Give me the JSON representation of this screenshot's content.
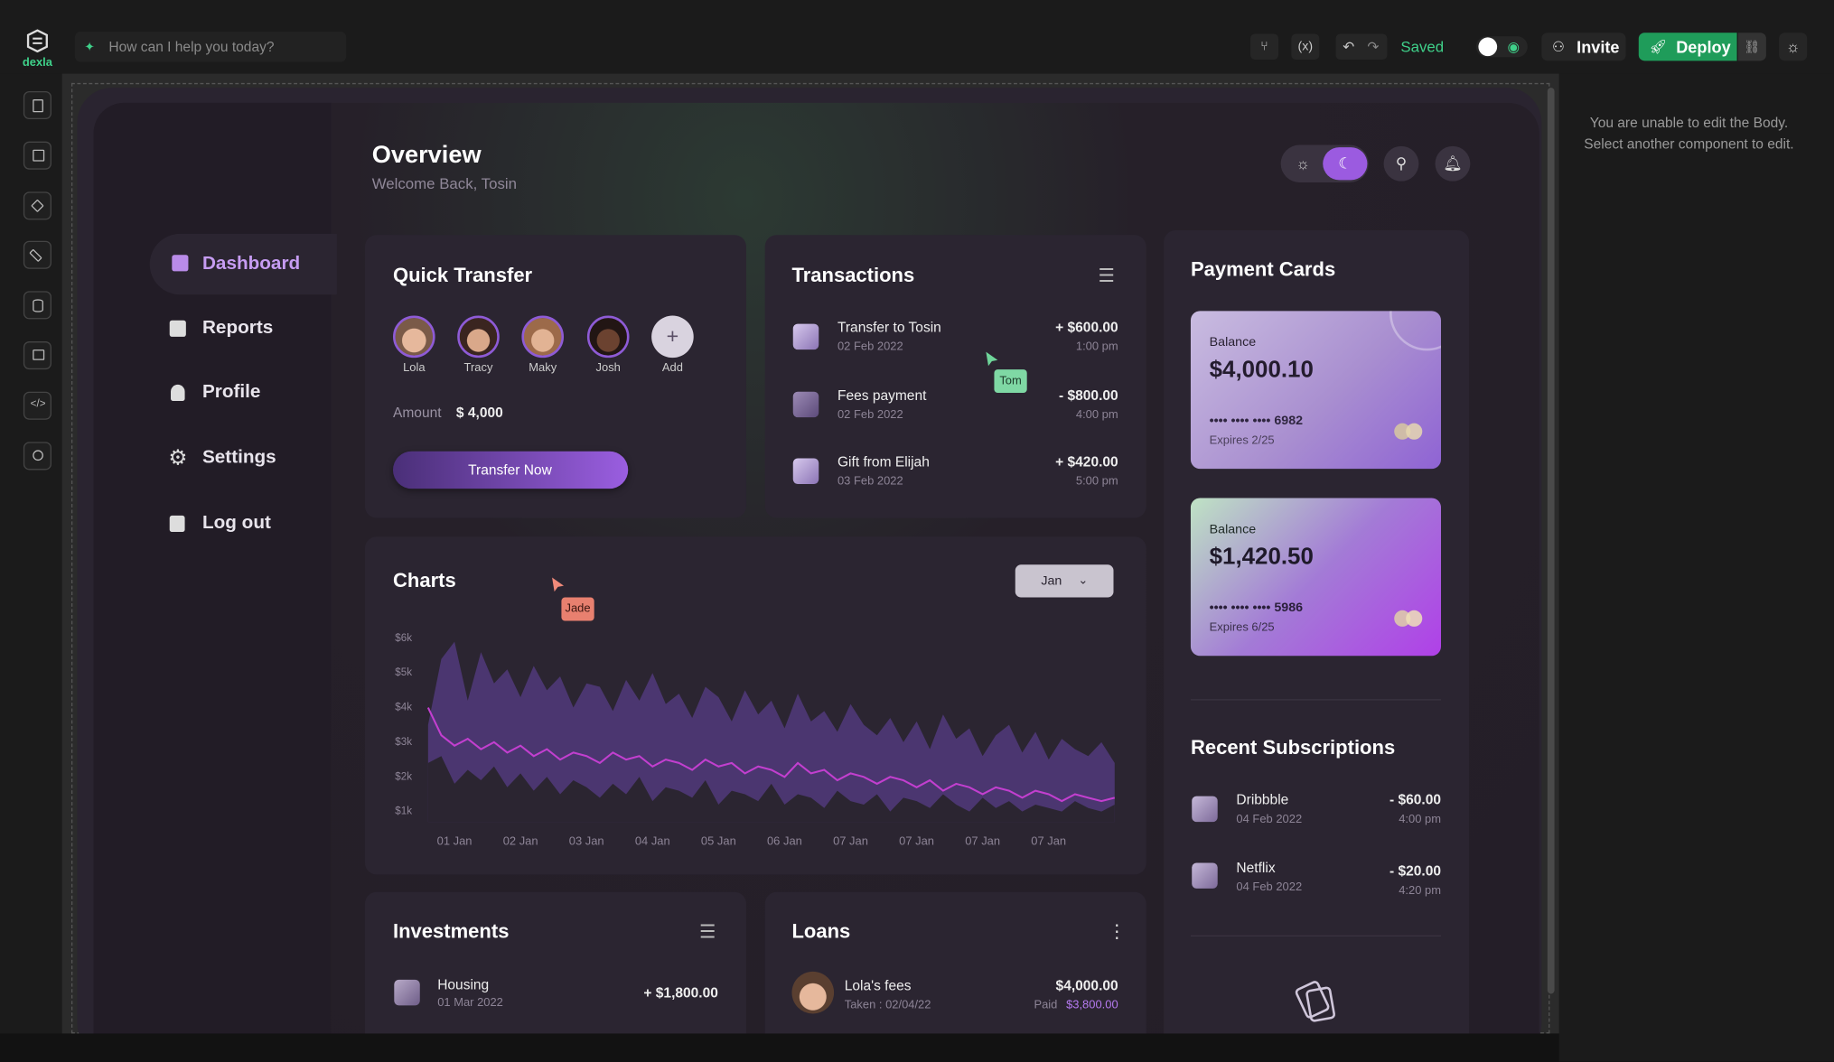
{
  "topbar": {
    "brand": "dexla",
    "prompt_placeholder": "How can I help you today?",
    "status": "Saved",
    "invite": "Invite",
    "deploy": "Deploy"
  },
  "inspector": {
    "message": "You are unable to edit the Body. Select another component to edit."
  },
  "dashboard": {
    "title": "Overview",
    "subtitle": "Welcome Back, Tosin",
    "nav": [
      "Dashboard",
      "Reports",
      "Profile",
      "Settings",
      "Log out"
    ],
    "quick_transfer": {
      "title": "Quick Transfer",
      "contacts": [
        "Lola",
        "Tracy",
        "Maky",
        "Josh",
        "Add"
      ],
      "amount_label": "Amount",
      "amount": "$ 4,000",
      "button": "Transfer Now"
    },
    "transactions": {
      "title": "Transactions",
      "rows": [
        {
          "name": "Transfer to Tosin",
          "date": "02 Feb 2022",
          "amount": "+ $600.00",
          "time": "1:00 pm"
        },
        {
          "name": "Fees payment",
          "date": "02 Feb 2022",
          "amount": "- $800.00",
          "time": "4:00 pm"
        },
        {
          "name": "Gift from Elijah",
          "date": "03 Feb 2022",
          "amount": "+ $420.00",
          "time": "5:00 pm"
        }
      ]
    },
    "cursors": [
      "Tom",
      "Jade"
    ],
    "payment_cards": {
      "title": "Payment Cards",
      "cards": [
        {
          "label": "Balance",
          "balance": "$4,000.10",
          "number": "•••• •••• •••• 6982",
          "expires": "Expires 2/25"
        },
        {
          "label": "Balance",
          "balance": "$1,420.50",
          "number": "•••• •••• •••• 5986",
          "expires": "Expires 6/25"
        }
      ]
    },
    "subscriptions": {
      "title": "Recent Subscriptions",
      "rows": [
        {
          "name": "Dribbble",
          "date": "04 Feb 2022",
          "amount": "- $60.00",
          "time": "4:00 pm"
        },
        {
          "name": "Netflix",
          "date": "04 Feb 2022",
          "amount": "- $20.00",
          "time": "4:20 pm"
        }
      ]
    },
    "investments": {
      "title": "Investments",
      "rows": [
        {
          "name": "Housing",
          "date": "01 Mar 2022",
          "amount": "+ $1,800.00"
        }
      ]
    },
    "loans": {
      "title": "Loans",
      "rows": [
        {
          "name": "Lola's fees",
          "taken": "Taken : 02/04/22",
          "amount": "$4,000.00",
          "paid_label": "Paid",
          "paid": "$3,800.00"
        }
      ]
    }
  },
  "chart_data": {
    "type": "area",
    "title": "Charts",
    "filter": "Jan",
    "categories": [
      null,
      null,
      "01 Jan",
      null,
      null,
      null,
      null,
      "02 Jan",
      null,
      null,
      null,
      null,
      "03 Jan",
      null,
      null,
      null,
      null,
      "04 Jan",
      null,
      null,
      null,
      null,
      "05 Jan",
      null,
      null,
      null,
      null,
      "06 Jan",
      null,
      null,
      null,
      null,
      "07 Jan",
      null,
      null,
      null,
      null,
      "07 Jan",
      null,
      null,
      null,
      null,
      "07 Jan",
      null,
      null,
      null,
      null,
      "07 Jan",
      null,
      null,
      null,
      null,
      null
    ],
    "ylim": [
      700,
      6200
    ],
    "yticks": [
      {
        "value": 6000,
        "label": "$6k"
      },
      {
        "value": 5000,
        "label": "$5k"
      },
      {
        "value": 4000,
        "label": "$4k"
      },
      {
        "value": 3000,
        "label": "$3k"
      },
      {
        "value": 2000,
        "label": "$2k"
      },
      {
        "value": 1000,
        "label": "$1k"
      }
    ],
    "series": [
      {
        "color": "#4b3670",
        "values": [
          3500,
          5400,
          5900,
          4200,
          5600,
          4700,
          5100,
          4300,
          5200,
          4500,
          4900,
          4000,
          4700,
          4600,
          3900,
          4800,
          4200,
          5000,
          4100,
          4400,
          3700,
          4600,
          4300,
          3600,
          4500,
          3800,
          4200,
          3400,
          4400,
          3600,
          3900,
          3300,
          4100,
          3500,
          3200,
          3700,
          3000,
          3600,
          2800,
          3800,
          3100,
          3400,
          2600,
          3200,
          3500,
          2700,
          3300,
          2500,
          3100,
          2800,
          2600,
          3000,
          2400
        ]
      },
      {
        "color": "#2b2531",
        "values": [
          2400,
          2600,
          1800,
          2200,
          1900,
          2300,
          1700,
          2100,
          1600,
          2000,
          1500,
          1900,
          1700,
          1400,
          1800,
          1500,
          2000,
          1300,
          1700,
          1600,
          1400,
          1900,
          1200,
          1600,
          1500,
          1300,
          1800,
          1200,
          1500,
          1400,
          1100,
          1600,
          1300,
          1200,
          1500,
          1000,
          1400,
          1300,
          1100,
          1500,
          1200,
          1000,
          1400,
          1100,
          1300,
          1000,
          1200,
          1100,
          1000,
          1300,
          1100,
          1000,
          1200
        ]
      },
      {
        "color": "#c23fcf",
        "values": [
          4000,
          3200,
          2900,
          3100,
          2800,
          3000,
          2700,
          2900,
          2600,
          2800,
          2500,
          2700,
          2600,
          2400,
          2700,
          2500,
          2600,
          2300,
          2500,
          2400,
          2200,
          2500,
          2300,
          2400,
          2100,
          2300,
          2200,
          2000,
          2400,
          2100,
          2200,
          1900,
          2100,
          2000,
          1800,
          2000,
          1900,
          1700,
          1900,
          1600,
          1800,
          1700,
          1500,
          1700,
          1600,
          1400,
          1600,
          1500,
          1300,
          1500,
          1400,
          1300,
          1400
        ]
      }
    ]
  }
}
